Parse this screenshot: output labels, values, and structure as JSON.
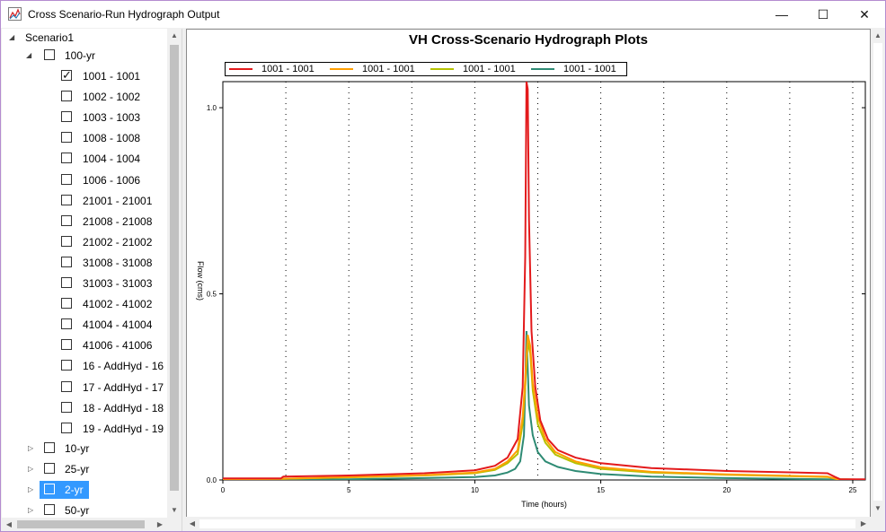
{
  "window": {
    "title": "Cross Scenario-Run Hydrograph Output",
    "controls": {
      "minimize": "—",
      "maximize": "☐",
      "close": "✕"
    }
  },
  "tree": {
    "root_label": "Scenario1",
    "group_100": {
      "label": "100-yr",
      "checked": false,
      "expanded": true
    },
    "items": [
      {
        "label": "1001 - 1001",
        "checked": true
      },
      {
        "label": "1002 - 1002",
        "checked": false
      },
      {
        "label": "1003 - 1003",
        "checked": false
      },
      {
        "label": "1008 - 1008",
        "checked": false
      },
      {
        "label": "1004 - 1004",
        "checked": false
      },
      {
        "label": "1006 - 1006",
        "checked": false
      },
      {
        "label": "21001 - 21001",
        "checked": false
      },
      {
        "label": "21008 - 21008",
        "checked": false
      },
      {
        "label": "21002 - 21002",
        "checked": false
      },
      {
        "label": "31008 - 31008",
        "checked": false
      },
      {
        "label": "31003 - 31003",
        "checked": false
      },
      {
        "label": "41002 - 41002",
        "checked": false
      },
      {
        "label": "41004 - 41004",
        "checked": false
      },
      {
        "label": "41006 - 41006",
        "checked": false
      },
      {
        "label": "16 - AddHyd - 16",
        "checked": false
      },
      {
        "label": "17 - AddHyd - 17",
        "checked": false
      },
      {
        "label": "18 - AddHyd - 18",
        "checked": false
      },
      {
        "label": "19 - AddHyd - 19",
        "checked": false
      }
    ],
    "groups": [
      {
        "label": "10-yr",
        "checked": false,
        "selected": false
      },
      {
        "label": "25-yr",
        "checked": false,
        "selected": false
      },
      {
        "label": "2-yr",
        "checked": false,
        "selected": true
      },
      {
        "label": "50-yr",
        "checked": false,
        "selected": false
      }
    ]
  },
  "chart_data": {
    "type": "line",
    "title": "VH Cross-Scenario Hydrograph Plots",
    "xlabel": "Time (hours)",
    "ylabel": "Flow (cms)",
    "xlim": [
      0,
      25.5
    ],
    "ylim": [
      0,
      1.07
    ],
    "xticks": [
      0,
      5,
      10,
      15,
      20,
      25
    ],
    "yticks": [
      0.0,
      0.5,
      1.0
    ],
    "ytick_labels": [
      "0.0",
      "0.5",
      "1.0"
    ],
    "grid": {
      "vertical": true,
      "horizontal": false,
      "style": "dotted"
    },
    "legend": "top-left",
    "series": [
      {
        "name": "1001 - 1001",
        "color": "#e31a1c",
        "x": [
          0,
          2.3,
          2.4,
          5,
          8,
          10,
          10.8,
          11.3,
          11.7,
          11.9,
          12.0,
          12.05,
          12.1,
          12.15,
          12.25,
          12.4,
          12.6,
          12.9,
          13.3,
          14.0,
          15.0,
          17.0,
          20.0,
          24.0,
          24.3,
          24.5,
          25.5
        ],
        "y": [
          0.004,
          0.004,
          0.009,
          0.012,
          0.018,
          0.026,
          0.038,
          0.06,
          0.11,
          0.25,
          0.6,
          1.07,
          1.05,
          0.7,
          0.4,
          0.25,
          0.16,
          0.11,
          0.08,
          0.06,
          0.045,
          0.032,
          0.024,
          0.018,
          0.008,
          0.002,
          0.002
        ]
      },
      {
        "name": "1001 - 1001",
        "color": "#ff9f00",
        "x": [
          0,
          2.3,
          5,
          8,
          10,
          10.8,
          11.3,
          11.7,
          11.9,
          12.0,
          12.1,
          12.2,
          12.3,
          12.5,
          12.8,
          13.2,
          14.0,
          15.0,
          17.0,
          20.0,
          24.0,
          24.4,
          25.5
        ],
        "y": [
          0.002,
          0.003,
          0.008,
          0.013,
          0.02,
          0.03,
          0.05,
          0.08,
          0.17,
          0.27,
          0.39,
          0.36,
          0.26,
          0.17,
          0.11,
          0.075,
          0.05,
          0.034,
          0.022,
          0.015,
          0.009,
          0.002,
          0.001
        ]
      },
      {
        "name": "1001 - 1001",
        "color": "#b5c200",
        "x": [
          0,
          2.3,
          5,
          8,
          10,
          10.8,
          11.3,
          11.7,
          11.9,
          12.0,
          12.1,
          12.2,
          12.3,
          12.5,
          12.8,
          13.2,
          14.0,
          15.0,
          17.0,
          20.0,
          24.0,
          24.4,
          25.5
        ],
        "y": [
          0.002,
          0.003,
          0.007,
          0.012,
          0.018,
          0.027,
          0.045,
          0.07,
          0.15,
          0.25,
          0.37,
          0.34,
          0.24,
          0.15,
          0.1,
          0.068,
          0.045,
          0.03,
          0.02,
          0.014,
          0.008,
          0.002,
          0.001
        ]
      },
      {
        "name": "1001 - 1001",
        "color": "#2e8b74",
        "x": [
          0,
          2.3,
          5,
          8,
          10,
          10.8,
          11.3,
          11.6,
          11.8,
          11.95,
          12.0,
          12.05,
          12.1,
          12.15,
          12.3,
          12.5,
          12.8,
          13.3,
          14.0,
          15.0,
          17.0,
          20.0,
          24.0,
          25.5
        ],
        "y": [
          0.0,
          0.0,
          0.002,
          0.005,
          0.008,
          0.012,
          0.02,
          0.03,
          0.05,
          0.12,
          0.25,
          0.4,
          0.3,
          0.2,
          0.12,
          0.075,
          0.05,
          0.035,
          0.024,
          0.016,
          0.009,
          0.005,
          0.002,
          0.001
        ]
      }
    ]
  }
}
